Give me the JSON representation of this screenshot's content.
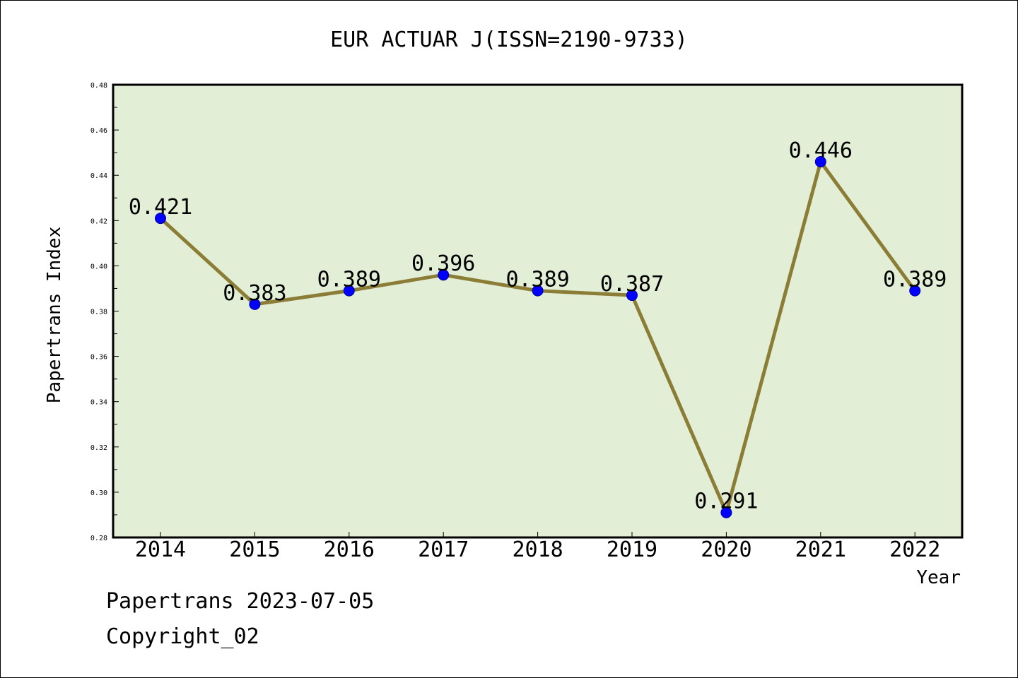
{
  "chart_data": {
    "type": "line",
    "title": "EUR ACTUAR J(ISSN=2190-9733)",
    "xlabel": "Year",
    "ylabel": "Papertrans Index",
    "categories": [
      "2014",
      "2015",
      "2016",
      "2017",
      "2018",
      "2019",
      "2020",
      "2021",
      "2022"
    ],
    "series": [
      {
        "values": [
          0.421,
          0.383,
          0.389,
          0.396,
          0.389,
          0.387,
          0.291,
          0.446,
          0.389
        ]
      }
    ],
    "data_labels": [
      "0.421",
      "0.383",
      "0.389",
      "0.396",
      "0.389",
      "0.387",
      "0.291",
      "0.446",
      "0.389"
    ],
    "ylim": [
      0.28,
      0.48
    ],
    "yticks": [
      "0.28",
      "0.30",
      "0.32",
      "0.34",
      "0.36",
      "0.38",
      "0.40",
      "0.42",
      "0.44",
      "0.46",
      "0.48"
    ],
    "grid": false,
    "colors": {
      "plot_background": "#e2efd6",
      "line": "#8b7d35",
      "marker": "#0000ff"
    }
  },
  "footer": {
    "source": "Papertrans 2023-07-05",
    "copyright": "Copyright_02"
  }
}
